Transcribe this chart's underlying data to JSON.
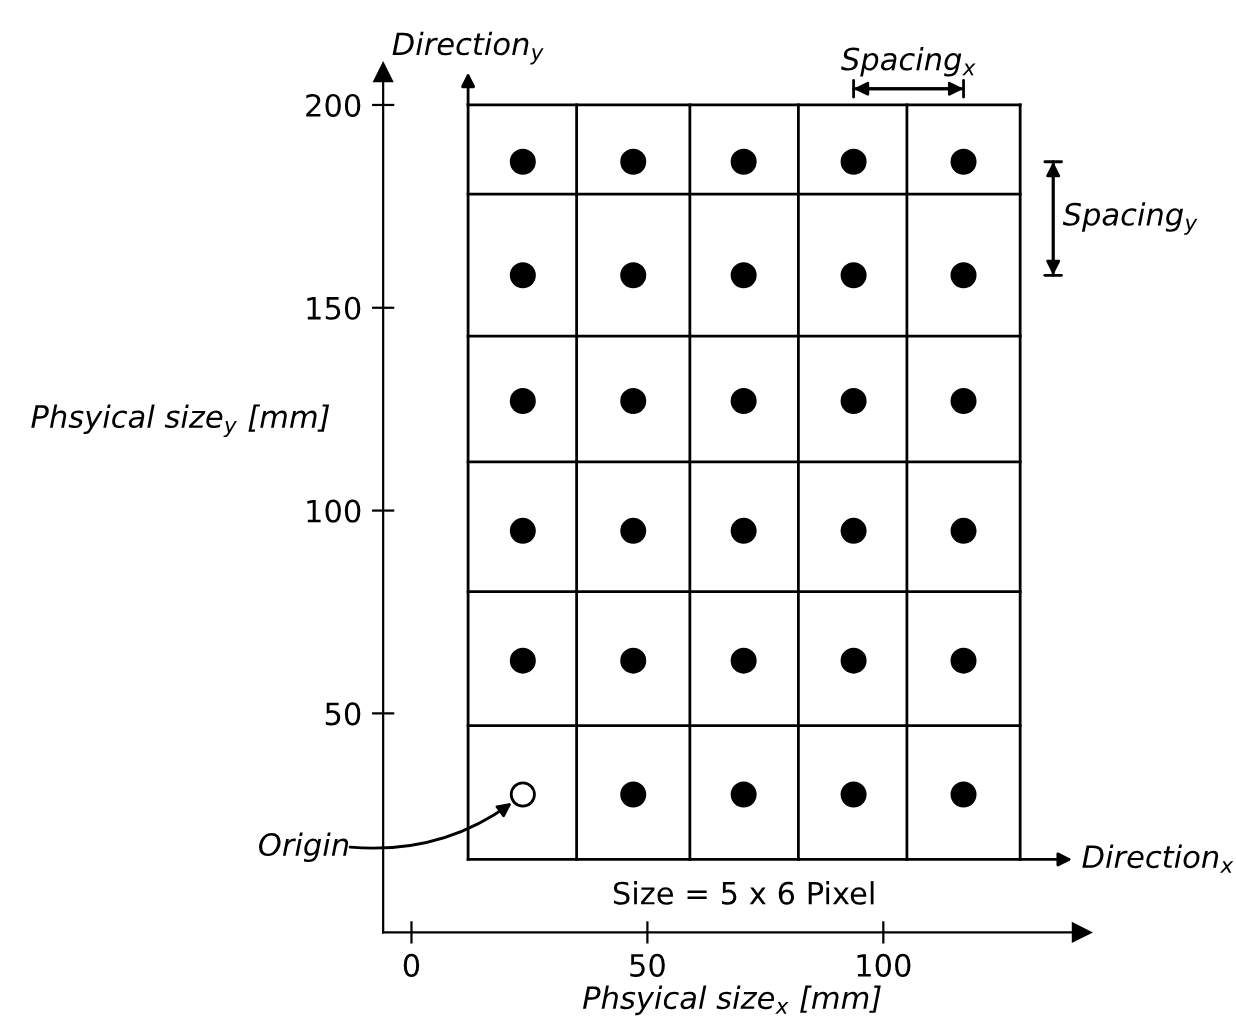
{
  "chart_data": {
    "type": "scatter",
    "xlabel": "Phsyical size$_{x}$ [mm]",
    "ylabel": "Phsyical size$_{y}$ [mm]",
    "x": [
      23.6,
      47,
      70.4,
      93.7,
      117,
      23.6,
      47,
      70.4,
      93.7,
      117,
      23.6,
      47,
      70.4,
      93.7,
      117,
      23.6,
      47,
      70.4,
      93.7,
      117,
      23.6,
      47,
      70.4,
      93.7,
      117,
      23.6,
      47,
      70.4,
      93.7,
      117
    ],
    "values": [
      186,
      186,
      186,
      186,
      186,
      158,
      158,
      158,
      158,
      158,
      127,
      127,
      127,
      127,
      127,
      95,
      95,
      95,
      95,
      95,
      63,
      63,
      63,
      63,
      63,
      30,
      30,
      30,
      30,
      30
    ],
    "colors": [
      "#000000",
      "#000000",
      "#000000",
      "#000000",
      "#000000",
      "#000000",
      "#000000",
      "#000000",
      "#000000",
      "#000000",
      "#000000",
      "#000000",
      "#000000",
      "#000000",
      "#000000",
      "#000000",
      "#000000",
      "#000000",
      "#000000",
      "#000000",
      "#000000",
      "#000000",
      "#000000",
      "#000000",
      "#000000",
      "#ffffff",
      "#000000",
      "#000000",
      "#000000",
      "#000000"
    ],
    "marker": "circle",
    "xlim": [
      -6,
      142
    ],
    "xticks": [
      0,
      50,
      100
    ],
    "ylim": [
      -4,
      208
    ],
    "yticks": [
      50,
      100,
      150,
      200
    ],
    "grid": false,
    "ref_lines": [
      {
        "axis": "x",
        "value": 12,
        "color": "#000000"
      },
      {
        "axis": "x",
        "value": 35,
        "color": "#000000"
      },
      {
        "axis": "x",
        "value": 59,
        "color": "#000000"
      },
      {
        "axis": "x",
        "value": 82,
        "color": "#000000"
      },
      {
        "axis": "x",
        "value": 105,
        "color": "#000000"
      },
      {
        "axis": "x",
        "value": 129,
        "color": "#000000"
      },
      {
        "axis": "y",
        "value": 14,
        "color": "#000000"
      },
      {
        "axis": "y",
        "value": 47,
        "color": "#000000"
      },
      {
        "axis": "y",
        "value": 80,
        "color": "#000000"
      },
      {
        "axis": "y",
        "value": 112,
        "color": "#000000"
      },
      {
        "axis": "y",
        "value": 143,
        "color": "#000000"
      },
      {
        "axis": "y",
        "value": 178,
        "color": "#000000"
      },
      {
        "axis": "y",
        "value": 200,
        "color": "#000000"
      }
    ],
    "annotations": [
      "Direction$_{y}$",
      "Direction$_{x}$",
      "Spacing$_{x}$",
      "Spacing$_{y}$",
      {
        "text": "Origin",
        "x": 23.6,
        "y": 30
      },
      "Size = 5 x 6 Pixel"
    ]
  }
}
